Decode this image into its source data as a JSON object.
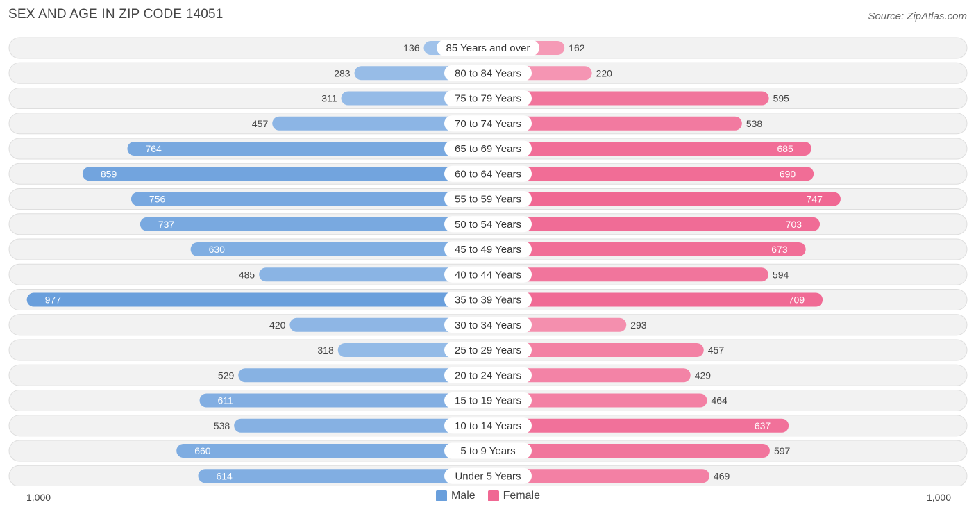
{
  "title": "SEX AND AGE IN ZIP CODE 14051",
  "source": "Source: ZipAtlas.com",
  "chart_data": {
    "type": "bar",
    "orientation": "horizontal-diverging",
    "categories": [
      "85 Years and over",
      "80 to 84 Years",
      "75 to 79 Years",
      "70 to 74 Years",
      "65 to 69 Years",
      "60 to 64 Years",
      "55 to 59 Years",
      "50 to 54 Years",
      "45 to 49 Years",
      "40 to 44 Years",
      "35 to 39 Years",
      "30 to 34 Years",
      "25 to 29 Years",
      "20 to 24 Years",
      "15 to 19 Years",
      "10 to 14 Years",
      "5 to 9 Years",
      "Under 5 Years"
    ],
    "series": [
      {
        "name": "Male",
        "color": "#6a9fdc",
        "values": [
          136,
          283,
          311,
          457,
          764,
          859,
          756,
          737,
          630,
          485,
          977,
          420,
          318,
          529,
          611,
          538,
          660,
          614
        ]
      },
      {
        "name": "Female",
        "color": "#f06893",
        "values": [
          162,
          220,
          595,
          538,
          685,
          690,
          747,
          703,
          673,
          594,
          709,
          293,
          457,
          429,
          464,
          637,
          597,
          469
        ]
      }
    ],
    "axis_max": 1000,
    "axis_left_label": "1,000",
    "axis_right_label": "1,000"
  },
  "legend": [
    {
      "label": "Male",
      "color": "#6a9fdc"
    },
    {
      "label": "Female",
      "color": "#f06893"
    }
  ]
}
